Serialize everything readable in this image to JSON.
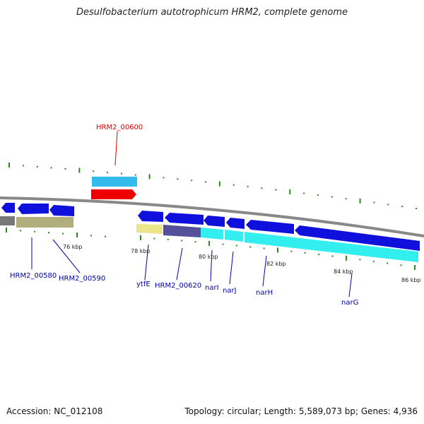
{
  "title": "Desulfobacterium autotrophicum HRM2, complete genome",
  "footer": {
    "accession": "Accession: NC_012108",
    "summary": "Topology: circular; Length: 5,589,073 bp; Genes: 4,936"
  },
  "colors": {
    "background": "#ffffff",
    "backbone": "#888888",
    "tick": "#2a8a1a",
    "gene_forward": "#1010dd",
    "cds_bar": "#33eeee",
    "highlight_gene": "#ee0000",
    "highlight_bar": "#33bbee",
    "label_default": "#0000aa",
    "label_highlight": "#dd0000",
    "bar_olive": "#b0ae7a",
    "bar_gray": "#777777",
    "bar_yellow": "#ece58a",
    "bar_purple": "#54509a"
  },
  "scale_labels": [
    "76 kbp",
    "78 kbp",
    "80 kbp",
    "82 kbp",
    "84 kbp",
    "86 kbp"
  ],
  "gene_labels": [
    {
      "text": "HRM2_00600",
      "highlight": true
    },
    {
      "text": "HRM2_00580",
      "highlight": false
    },
    {
      "text": "HRM2_00590",
      "highlight": false
    },
    {
      "text": "ytfE",
      "highlight": false
    },
    {
      "text": "HRM2_00620",
      "highlight": false
    },
    {
      "text": "narI",
      "highlight": false
    },
    {
      "text": "narJ",
      "highlight": false
    },
    {
      "text": "narH",
      "highlight": false
    },
    {
      "text": "narG",
      "highlight": false
    }
  ]
}
